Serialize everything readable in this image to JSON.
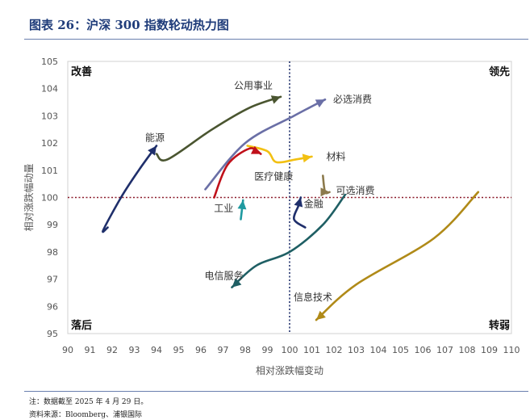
{
  "figure": {
    "title": "图表 26：沪深 300 指数轮动热力图",
    "note": "注：数据截至 2025 年 4 月 29 日。",
    "source": "资料来源：Bloomberg、浦银国际"
  },
  "chart_data": {
    "type": "line",
    "xlabel": "相对涨跌幅变动",
    "ylabel": "相对涨跌幅动量",
    "xlim": [
      90,
      110
    ],
    "ylim": [
      95,
      105
    ],
    "xticks": [
      90,
      91,
      92,
      93,
      94,
      95,
      96,
      97,
      98,
      99,
      100,
      101,
      102,
      103,
      104,
      105,
      106,
      107,
      108,
      109,
      110
    ],
    "yticks": [
      95,
      96,
      97,
      98,
      99,
      100,
      101,
      102,
      103,
      104,
      105
    ],
    "reference_lines": {
      "x": 100,
      "y": 100
    },
    "quadrants": [
      {
        "label": "改善",
        "position": "top-left"
      },
      {
        "label": "领先",
        "position": "top-right"
      },
      {
        "label": "落后",
        "position": "bottom-left"
      },
      {
        "label": "转弱",
        "position": "bottom-right"
      }
    ],
    "series": [
      {
        "name": "能源",
        "color": "#1f2f6b",
        "points": [
          [
            91.8,
            98.9
          ],
          [
            91.6,
            98.8
          ],
          [
            92.4,
            100.0
          ],
          [
            93.2,
            101.0
          ],
          [
            94.0,
            101.9
          ]
        ]
      },
      {
        "name": "公用事业",
        "color": "#4a5530",
        "points": [
          [
            94.0,
            101.6
          ],
          [
            94.5,
            101.4
          ],
          [
            96.5,
            102.5
          ],
          [
            98.2,
            103.3
          ],
          [
            99.6,
            103.7
          ]
        ]
      },
      {
        "name": "必选消费",
        "color": "#6a6fa6",
        "points": [
          [
            96.2,
            100.3
          ],
          [
            98.0,
            102.0
          ],
          [
            100.2,
            103.0
          ],
          [
            101.6,
            103.6
          ]
        ]
      },
      {
        "name": "材料",
        "color": "#f2c012",
        "points": [
          [
            98.1,
            101.9
          ],
          [
            99.0,
            101.7
          ],
          [
            99.4,
            101.3
          ],
          [
            100.3,
            101.4
          ],
          [
            101.0,
            101.5
          ]
        ]
      },
      {
        "name": "医疗健康",
        "color": "#c0101a",
        "points": [
          [
            96.6,
            100.0
          ],
          [
            97.2,
            101.2
          ],
          [
            98.2,
            101.8
          ],
          [
            98.7,
            101.6
          ]
        ]
      },
      {
        "name": "可选消费",
        "color": "#8c7a4c",
        "points": [
          [
            101.5,
            100.8
          ],
          [
            101.6,
            100.2
          ],
          [
            101.8,
            100.2
          ]
        ]
      },
      {
        "name": "工业",
        "color": "#1f9aa0",
        "points": [
          [
            97.8,
            99.2
          ],
          [
            97.9,
            99.9
          ]
        ]
      },
      {
        "name": "金融",
        "color": "#1f2f6b",
        "points": [
          [
            100.7,
            98.9
          ],
          [
            100.2,
            99.2
          ],
          [
            100.4,
            99.7
          ],
          [
            100.5,
            100.0
          ]
        ]
      },
      {
        "name": "电信服务",
        "color": "#1f5f64",
        "points": [
          [
            102.5,
            100.1
          ],
          [
            101.5,
            99.0
          ],
          [
            100.0,
            98.0
          ],
          [
            98.5,
            97.5
          ],
          [
            97.4,
            96.7
          ]
        ]
      },
      {
        "name": "信息技术",
        "color": "#b08a18",
        "points": [
          [
            108.5,
            100.2
          ],
          [
            106.5,
            98.5
          ],
          [
            103.0,
            96.8
          ],
          [
            101.2,
            95.5
          ]
        ]
      }
    ]
  }
}
